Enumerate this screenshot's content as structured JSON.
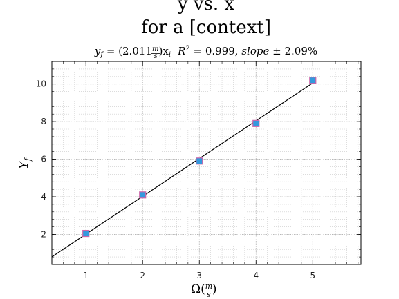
{
  "chart_data": {
    "type": "scatter",
    "title_line1": "y  vs.  x",
    "title_line2": "for a [context]",
    "subtitle": {
      "lhs": "y",
      "lhs_sub": "f",
      "eq_open": " = (2.011",
      "unit_num": "m",
      "unit_den": "s",
      "eq_close": ")x",
      "eq_close_sub": "i",
      "r2_label": "R",
      "r2_sup": "2",
      "r2_value": " = 0.999, ",
      "slope_label": "slope",
      "slope_value": " ± 2.09%"
    },
    "xlabel": {
      "main": "Ω(",
      "num": "m",
      "den": "s",
      "close": ")"
    },
    "ylabel": {
      "main": "Y",
      "sub": "f"
    },
    "xlim": [
      0.4,
      5.85
    ],
    "ylim": [
      0.4,
      11.2
    ],
    "xticks": [
      1,
      2,
      3,
      4,
      5
    ],
    "yticks": [
      2,
      4,
      6,
      8,
      10
    ],
    "grid": true,
    "series": [
      {
        "x": [
          1,
          2,
          3,
          4,
          5
        ],
        "y": [
          2.05,
          4.1,
          5.9,
          7.9,
          10.2
        ],
        "marker": "square",
        "fill": "#3399dd",
        "edge": "#cc66aa"
      }
    ],
    "fit": {
      "slope": 2.011,
      "intercept": 0,
      "x_range": [
        0.4,
        5.0
      ],
      "color": "#000000"
    }
  }
}
